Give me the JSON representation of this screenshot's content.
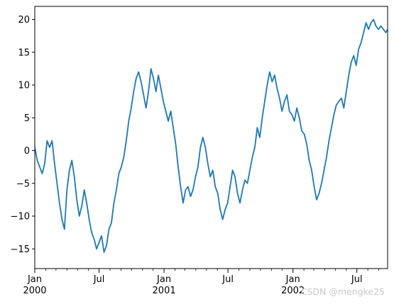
{
  "chart_data": {
    "type": "line",
    "title": "",
    "xlabel": "",
    "ylabel": "",
    "grid": false,
    "legend": null,
    "xlim": [
      "2000-01-01",
      "2002-09-26"
    ],
    "ylim": [
      -18,
      22
    ],
    "yticks": [
      -15,
      -10,
      -5,
      0,
      5,
      10,
      15,
      20
    ],
    "ytick_labels": [
      "−15",
      "−10",
      "−5",
      "0",
      "5",
      "10",
      "15",
      "20"
    ],
    "xticks_major": [
      {
        "date": "2000-01-01",
        "label": "Jan\n2000"
      },
      {
        "date": "2000-07-01",
        "label": "Jul"
      },
      {
        "date": "2001-01-01",
        "label": "Jan\n2001"
      },
      {
        "date": "2001-07-01",
        "label": "Jul"
      },
      {
        "date": "2002-01-01",
        "label": "Jan\n2002"
      },
      {
        "date": "2002-07-01",
        "label": "Jul"
      }
    ],
    "xticks_minor": [
      "2000-02-01",
      "2000-03-01",
      "2000-04-01",
      "2000-05-01",
      "2000-06-01",
      "2000-08-01",
      "2000-09-01",
      "2000-10-01",
      "2000-11-01",
      "2000-12-01",
      "2001-02-01",
      "2001-03-01",
      "2001-04-01",
      "2001-05-01",
      "2001-06-01",
      "2001-08-01",
      "2001-09-01",
      "2001-10-01",
      "2001-11-01",
      "2001-12-01",
      "2002-02-01",
      "2002-03-01",
      "2002-04-01",
      "2002-05-01",
      "2002-06-01",
      "2002-08-01",
      "2002-09-01"
    ],
    "series": [
      {
        "color": "#1f77b4",
        "x": [
          "2000-01-01",
          "2000-01-08",
          "2000-01-15",
          "2000-01-22",
          "2000-01-29",
          "2000-02-05",
          "2000-02-12",
          "2000-02-19",
          "2000-02-26",
          "2000-03-04",
          "2000-03-11",
          "2000-03-18",
          "2000-03-25",
          "2000-04-01",
          "2000-04-08",
          "2000-04-15",
          "2000-04-22",
          "2000-04-29",
          "2000-05-06",
          "2000-05-13",
          "2000-05-20",
          "2000-05-27",
          "2000-06-03",
          "2000-06-10",
          "2000-06-17",
          "2000-06-24",
          "2000-07-01",
          "2000-07-08",
          "2000-07-15",
          "2000-07-22",
          "2000-07-29",
          "2000-08-05",
          "2000-08-12",
          "2000-08-19",
          "2000-08-26",
          "2000-09-02",
          "2000-09-09",
          "2000-09-16",
          "2000-09-23",
          "2000-09-30",
          "2000-10-07",
          "2000-10-14",
          "2000-10-21",
          "2000-10-28",
          "2000-11-04",
          "2000-11-11",
          "2000-11-18",
          "2000-11-25",
          "2000-12-02",
          "2000-12-09",
          "2000-12-16",
          "2000-12-23",
          "2000-12-30",
          "2001-01-06",
          "2001-01-13",
          "2001-01-20",
          "2001-01-27",
          "2001-02-03",
          "2001-02-10",
          "2001-02-17",
          "2001-02-24",
          "2001-03-03",
          "2001-03-10",
          "2001-03-17",
          "2001-03-24",
          "2001-03-31",
          "2001-04-07",
          "2001-04-14",
          "2001-04-21",
          "2001-04-28",
          "2001-05-05",
          "2001-05-12",
          "2001-05-19",
          "2001-05-26",
          "2001-06-02",
          "2001-06-09",
          "2001-06-16",
          "2001-06-23",
          "2001-06-30",
          "2001-07-07",
          "2001-07-14",
          "2001-07-21",
          "2001-07-28",
          "2001-08-04",
          "2001-08-11",
          "2001-08-18",
          "2001-08-25",
          "2001-09-01",
          "2001-09-08",
          "2001-09-15",
          "2001-09-22",
          "2001-09-29",
          "2001-10-06",
          "2001-10-13",
          "2001-10-20",
          "2001-10-27",
          "2001-11-03",
          "2001-11-10",
          "2001-11-17",
          "2001-11-24",
          "2001-12-01",
          "2001-12-08",
          "2001-12-15",
          "2001-12-22",
          "2001-12-29",
          "2002-01-05",
          "2002-01-12",
          "2002-01-19",
          "2002-01-26",
          "2002-02-02",
          "2002-02-09",
          "2002-02-16",
          "2002-02-23",
          "2002-03-02",
          "2002-03-09",
          "2002-03-16",
          "2002-03-23",
          "2002-03-30",
          "2002-04-06",
          "2002-04-13",
          "2002-04-20",
          "2002-04-27",
          "2002-05-04",
          "2002-05-11",
          "2002-05-18",
          "2002-05-25",
          "2002-06-01",
          "2002-06-08",
          "2002-06-15",
          "2002-06-22",
          "2002-06-29",
          "2002-07-06",
          "2002-07-13",
          "2002-07-20",
          "2002-07-27",
          "2002-08-03",
          "2002-08-10",
          "2002-08-17",
          "2002-08-24",
          "2002-08-31",
          "2002-09-07",
          "2002-09-14",
          "2002-09-21",
          "2002-09-26"
        ],
        "values": [
          0.5,
          -1.5,
          -2.5,
          -3.5,
          -2.0,
          1.5,
          0.5,
          1.5,
          -2.0,
          -5.0,
          -8.0,
          -10.5,
          -12.0,
          -6.0,
          -3.0,
          -1.5,
          -4.0,
          -7.5,
          -10.0,
          -8.5,
          -6.0,
          -8.0,
          -10.5,
          -12.5,
          -13.5,
          -15.0,
          -14.0,
          -13.0,
          -15.5,
          -14.5,
          -12.0,
          -11.0,
          -8.0,
          -6.0,
          -3.5,
          -2.5,
          -1.0,
          1.5,
          4.5,
          6.5,
          9.0,
          11.0,
          12.0,
          10.5,
          8.5,
          6.5,
          9.0,
          12.5,
          11.0,
          9.0,
          11.5,
          9.5,
          7.5,
          6.0,
          4.5,
          6.0,
          3.5,
          1.0,
          -2.5,
          -5.5,
          -8.0,
          -6.0,
          -5.5,
          -7.0,
          -6.0,
          -4.0,
          -2.5,
          0.5,
          2.0,
          0.5,
          -2.0,
          -4.0,
          -3.0,
          -5.5,
          -6.5,
          -9.0,
          -10.5,
          -9.0,
          -8.0,
          -5.5,
          -3.0,
          -4.0,
          -6.5,
          -8.0,
          -6.0,
          -4.5,
          -5.0,
          -3.0,
          -1.0,
          0.5,
          3.5,
          2.0,
          5.0,
          7.5,
          10.0,
          12.0,
          10.5,
          11.5,
          9.5,
          8.0,
          6.0,
          7.5,
          8.5,
          6.0,
          5.5,
          4.5,
          6.5,
          5.0,
          3.0,
          2.5,
          1.0,
          -1.5,
          -3.0,
          -5.5,
          -7.5,
          -6.5,
          -5.0,
          -3.0,
          -1.0,
          1.5,
          3.5,
          5.5,
          7.0,
          7.5,
          8.0,
          6.5,
          9.0,
          11.5,
          13.5,
          14.5,
          13.0,
          15.5,
          16.5,
          18.0,
          19.5,
          18.5,
          19.5,
          20.0,
          19.0,
          18.5,
          19.0,
          18.5,
          18.0,
          18.5
        ]
      }
    ]
  },
  "watermark": "CSDN @mengke25"
}
